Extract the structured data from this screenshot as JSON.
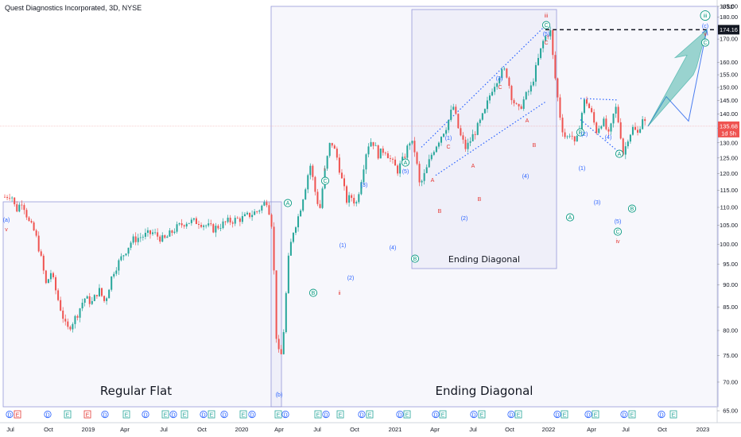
{
  "title": "Quest Diagnostics Incorporated, 3D, NYSE",
  "currency": "USD",
  "colors": {
    "up": "#26a69a",
    "down": "#ef5350",
    "wave_blue": "#2962ff",
    "wave_red": "#e53935",
    "wave_green": "#089981",
    "box_border": "#9598d8",
    "box_fill": "rgba(149,152,216,0.08)"
  },
  "chart_data": {
    "type": "candlestick",
    "title": "Quest Diagnostics Incorporated, 3D, NYSE",
    "x_axis": {
      "ticks": [
        "Jul",
        "Oct",
        "2019",
        "Apr",
        "Jul",
        "Oct",
        "2020",
        "Apr",
        "Jul",
        "Oct",
        "2021",
        "Apr",
        "Jul",
        "Oct",
        "2022",
        "Apr",
        "Jul",
        "Oct",
        "2023"
      ]
    },
    "y_axis": {
      "scale": "log",
      "range": [
        65,
        188
      ],
      "ticks": [
        65,
        70,
        75,
        80,
        85,
        90,
        95,
        100,
        105,
        110,
        115,
        120,
        125,
        130,
        135,
        140,
        145,
        150,
        155,
        160,
        170,
        180,
        185
      ]
    },
    "price_markers": [
      {
        "label": "174.16",
        "value": 174.16,
        "color": "#131722"
      },
      {
        "label": "135.68",
        "sublabel": "1d 5h",
        "value": 135.68,
        "color": "#ef5350"
      }
    ],
    "path": [
      {
        "t": 0,
        "p": 113
      },
      {
        "t": 8,
        "p": 114
      },
      {
        "t": 14,
        "p": 109
      },
      {
        "t": 22,
        "p": 112
      },
      {
        "t": 30,
        "p": 106
      },
      {
        "t": 38,
        "p": 103
      },
      {
        "t": 44,
        "p": 98
      },
      {
        "t": 52,
        "p": 90
      },
      {
        "t": 58,
        "p": 93
      },
      {
        "t": 68,
        "p": 86
      },
      {
        "t": 78,
        "p": 80
      },
      {
        "t": 90,
        "p": 83
      },
      {
        "t": 100,
        "p": 87
      },
      {
        "t": 110,
        "p": 86
      },
      {
        "t": 118,
        "p": 89
      },
      {
        "t": 126,
        "p": 86
      },
      {
        "t": 136,
        "p": 93
      },
      {
        "t": 148,
        "p": 97
      },
      {
        "t": 160,
        "p": 101
      },
      {
        "t": 172,
        "p": 102
      },
      {
        "t": 186,
        "p": 103
      },
      {
        "t": 200,
        "p": 101
      },
      {
        "t": 214,
        "p": 104
      },
      {
        "t": 228,
        "p": 106
      },
      {
        "t": 244,
        "p": 106
      },
      {
        "t": 262,
        "p": 104
      },
      {
        "t": 280,
        "p": 106
      },
      {
        "t": 300,
        "p": 107
      },
      {
        "t": 318,
        "p": 109
      },
      {
        "t": 330,
        "p": 112
      },
      {
        "t": 336,
        "p": 105
      },
      {
        "t": 342,
        "p": 77
      },
      {
        "t": 347,
        "p": 74
      },
      {
        "t": 352,
        "p": 82
      },
      {
        "t": 356,
        "p": 95
      },
      {
        "t": 362,
        "p": 103
      },
      {
        "t": 370,
        "p": 108
      },
      {
        "t": 378,
        "p": 116
      },
      {
        "t": 384,
        "p": 123
      },
      {
        "t": 390,
        "p": 115
      },
      {
        "t": 396,
        "p": 109
      },
      {
        "t": 402,
        "p": 120
      },
      {
        "t": 410,
        "p": 131
      },
      {
        "t": 418,
        "p": 125
      },
      {
        "t": 424,
        "p": 118
      },
      {
        "t": 430,
        "p": 112
      },
      {
        "t": 436,
        "p": 113
      },
      {
        "t": 442,
        "p": 111
      },
      {
        "t": 448,
        "p": 118
      },
      {
        "t": 456,
        "p": 129
      },
      {
        "t": 462,
        "p": 131
      },
      {
        "t": 470,
        "p": 126
      },
      {
        "t": 478,
        "p": 128
      },
      {
        "t": 486,
        "p": 124
      },
      {
        "t": 494,
        "p": 121
      },
      {
        "t": 502,
        "p": 125
      },
      {
        "t": 510,
        "p": 131
      },
      {
        "t": 516,
        "p": 127
      },
      {
        "t": 522,
        "p": 116
      },
      {
        "t": 530,
        "p": 121
      },
      {
        "t": 538,
        "p": 127
      },
      {
        "t": 546,
        "p": 131
      },
      {
        "t": 556,
        "p": 136
      },
      {
        "t": 564,
        "p": 143
      },
      {
        "t": 572,
        "p": 133
      },
      {
        "t": 580,
        "p": 128
      },
      {
        "t": 588,
        "p": 132
      },
      {
        "t": 596,
        "p": 136
      },
      {
        "t": 604,
        "p": 141
      },
      {
        "t": 612,
        "p": 149
      },
      {
        "t": 622,
        "p": 155
      },
      {
        "t": 630,
        "p": 157
      },
      {
        "t": 638,
        "p": 146
      },
      {
        "t": 646,
        "p": 141
      },
      {
        "t": 654,
        "p": 146
      },
      {
        "t": 662,
        "p": 150
      },
      {
        "t": 670,
        "p": 160
      },
      {
        "t": 678,
        "p": 170
      },
      {
        "t": 686,
        "p": 174
      },
      {
        "t": 690,
        "p": 160
      },
      {
        "t": 694,
        "p": 149
      },
      {
        "t": 700,
        "p": 136
      },
      {
        "t": 706,
        "p": 131
      },
      {
        "t": 712,
        "p": 134
      },
      {
        "t": 718,
        "p": 128
      },
      {
        "t": 724,
        "p": 138
      },
      {
        "t": 730,
        "p": 146
      },
      {
        "t": 738,
        "p": 140
      },
      {
        "t": 744,
        "p": 134
      },
      {
        "t": 752,
        "p": 138
      },
      {
        "t": 760,
        "p": 132
      },
      {
        "t": 768,
        "p": 143
      },
      {
        "t": 774,
        "p": 134
      },
      {
        "t": 778,
        "p": 126
      },
      {
        "t": 784,
        "p": 132
      },
      {
        "t": 790,
        "p": 135
      },
      {
        "t": 796,
        "p": 133
      },
      {
        "t": 802,
        "p": 139
      },
      {
        "t": 808,
        "p": 135
      }
    ],
    "forecast_arrow": [
      135.68,
      146.5,
      137.5,
      174.16
    ],
    "boxes": [
      {
        "label": "Regular Flat",
        "wave_start": "(a)",
        "wave_end": "(b)"
      },
      {
        "label": "Ending Diagonal",
        "wave_start": "A",
        "wave_end": "iii"
      },
      {
        "label": "Ending Diagonal"
      }
    ],
    "wave_labels": [
      {
        "text": "(a)",
        "color": "blue"
      },
      {
        "text": "v",
        "color": "red"
      },
      {
        "text": "(b)",
        "color": "blue"
      },
      {
        "text": "A",
        "color": "green"
      },
      {
        "text": "B",
        "color": "green"
      },
      {
        "text": "i",
        "color": "red"
      },
      {
        "text": "C",
        "color": "green"
      },
      {
        "text": "ii",
        "color": "red"
      },
      {
        "text": "(1)",
        "color": "blue"
      },
      {
        "text": "(2)",
        "color": "blue"
      },
      {
        "text": "(3)",
        "color": "blue"
      },
      {
        "text": "(4)",
        "color": "blue"
      },
      {
        "text": "A",
        "color": "green"
      },
      {
        "text": "(5)",
        "color": "blue"
      },
      {
        "text": "B",
        "color": "green"
      },
      {
        "text": "A",
        "color": "red"
      },
      {
        "text": "B",
        "color": "red"
      },
      {
        "text": "(1)",
        "color": "blue"
      },
      {
        "text": "C",
        "color": "red"
      },
      {
        "text": "(2)",
        "color": "blue"
      },
      {
        "text": "B",
        "color": "red"
      },
      {
        "text": "A",
        "color": "red"
      },
      {
        "text": "(3)",
        "color": "blue"
      },
      {
        "text": "C",
        "color": "red"
      },
      {
        "text": "A",
        "color": "red"
      },
      {
        "text": "B",
        "color": "red"
      },
      {
        "text": "(4)",
        "color": "blue"
      },
      {
        "text": "iii",
        "color": "red"
      },
      {
        "text": "C",
        "color": "green"
      },
      {
        "text": "(5)",
        "color": "blue"
      },
      {
        "text": "C",
        "color": "red"
      },
      {
        "text": "A",
        "color": "green"
      },
      {
        "text": "B",
        "color": "green"
      },
      {
        "text": "(2)",
        "color": "blue"
      },
      {
        "text": "(1)",
        "color": "blue"
      },
      {
        "text": "(4)",
        "color": "blue"
      },
      {
        "text": "(3)",
        "color": "blue"
      },
      {
        "text": "A",
        "color": "green"
      },
      {
        "text": "(5)",
        "color": "blue"
      },
      {
        "text": "C",
        "color": "green"
      },
      {
        "text": "iv",
        "color": "red"
      },
      {
        "text": "B",
        "color": "green"
      },
      {
        "text": "iii",
        "color": "green"
      },
      {
        "text": "(c)",
        "color": "blue"
      },
      {
        "text": "v",
        "color": "red"
      },
      {
        "text": "C",
        "color": "green"
      }
    ],
    "event_markers": [
      "D",
      "E",
      "D",
      "E",
      "E",
      "D",
      "E",
      "D",
      "E",
      "D",
      "E",
      "D",
      "E",
      "D",
      "E",
      "D",
      "E",
      "D",
      "E",
      "D",
      "E",
      "D",
      "E",
      "D",
      "E",
      "D",
      "E",
      "D",
      "E",
      "D",
      "E",
      "D",
      "E",
      "D",
      "E",
      "D",
      "E",
      "D",
      "E",
      "D",
      "E"
    ]
  }
}
